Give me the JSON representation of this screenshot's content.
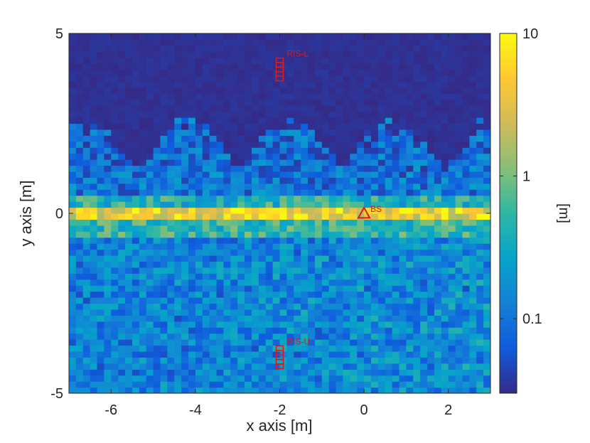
{
  "chart_data": {
    "type": "heatmap",
    "title": "",
    "xlabel": "x axis [m]",
    "ylabel": "y axis [m]",
    "colorbar_label": "[m]",
    "colormap": "parula",
    "color_scale": "log",
    "xlim": [
      -7,
      3
    ],
    "ylim": [
      -5,
      5
    ],
    "clim": [
      0.03,
      10
    ],
    "x_ticks": [
      -6,
      -4,
      -2,
      0,
      2
    ],
    "x_tick_labels": [
      "-6",
      "-4",
      "-2",
      "0",
      "2"
    ],
    "y_ticks": [
      -5,
      0,
      5
    ],
    "y_tick_labels": [
      "-5",
      "0",
      "5"
    ],
    "colorbar_ticks": [
      0.1,
      1,
      10
    ],
    "colorbar_tick_labels": [
      "0.1",
      "1",
      "10"
    ],
    "grid": false,
    "markers": [
      {
        "label": "RIS-L",
        "shape": "ris-array",
        "x": -2,
        "y": 4,
        "color": "#d81b1b"
      },
      {
        "label": "RIS-U",
        "shape": "ris-array",
        "x": -2,
        "y": -4,
        "color": "#d81b1b"
      },
      {
        "label": "BS",
        "shape": "triangle",
        "x": 0,
        "y": 0,
        "color": "#d81b1b"
      }
    ],
    "field_regions": [
      {
        "y_range": [
          1.2,
          5
        ],
        "level": 0.03
      },
      {
        "y_range": [
          0.5,
          1.2
        ],
        "level": 0.1
      },
      {
        "y_range": [
          0.15,
          0.5
        ],
        "level": 0.4
      },
      {
        "y_range": [
          -0.2,
          0.15
        ],
        "level": 4
      },
      {
        "y_range": [
          -0.6,
          -0.2
        ],
        "level": 0.5
      },
      {
        "y_range": [
          -5,
          -0.6
        ],
        "level": 0.12
      }
    ]
  }
}
